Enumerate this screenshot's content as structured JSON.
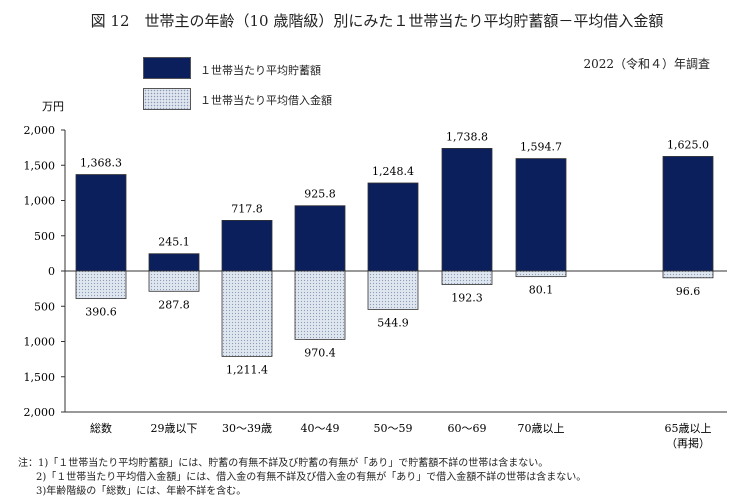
{
  "title": "図 12　世帯主の年齢（10 歳階級）別にみた１世帯当たり平均貯蓄額－平均借入金額",
  "survey": "2022（令和４）年調査",
  "colors": {
    "savings": "#0b1f5c",
    "debt_fill": "#dfe6f0",
    "debt_dots": "#8a9ab5"
  },
  "chart_data": {
    "type": "bar",
    "ylabel": "万円",
    "ylim": [
      -2000,
      2000
    ],
    "yticks": [
      2000,
      1500,
      1000,
      500,
      0,
      -500,
      -1000,
      -1500,
      -2000
    ],
    "ytick_labels": [
      "2,000",
      "1,500",
      "1,000",
      "500",
      "0",
      "500",
      "1,000",
      "1,500",
      "2,000"
    ],
    "categories": [
      "総数",
      "29歳以下",
      "30～39歳",
      "40～49",
      "50～59",
      "60～69",
      "70歳以上",
      "65歳以上\n（再掲）"
    ],
    "series": [
      {
        "name": "１世帯当たり平均貯蓄額",
        "values": [
          1368.3,
          245.1,
          717.8,
          925.8,
          1248.4,
          1738.8,
          1594.7,
          1625.0
        ],
        "labels": [
          "1,368.3",
          "245.1",
          "717.8",
          "925.8",
          "1,248.4",
          "1,738.8",
          "1,594.7",
          "1,625.0"
        ]
      },
      {
        "name": "１世帯当たり平均借入金額",
        "values": [
          390.6,
          287.8,
          1211.4,
          970.4,
          544.9,
          192.3,
          80.1,
          96.6
        ],
        "labels": [
          "390.6",
          "287.8",
          "1,211.4",
          "970.4",
          "544.9",
          "192.3",
          "80.1",
          "96.6"
        ]
      }
    ],
    "legend": "top-left"
  },
  "notes": [
    "注：1)「１世帯当たり平均貯蓄額」には、貯蓄の有無不詳及び貯蓄の有無が「あり」で貯蓄額不詳の世帯は含まない。",
    "2)「１世帯当たり平均借入金額」には、借入金の有無不詳及び借入金の有無が「あり」で借入金額不詳の世帯は含まない。",
    "3)年齢階級の「総数」には、年齢不詳を含む。"
  ]
}
